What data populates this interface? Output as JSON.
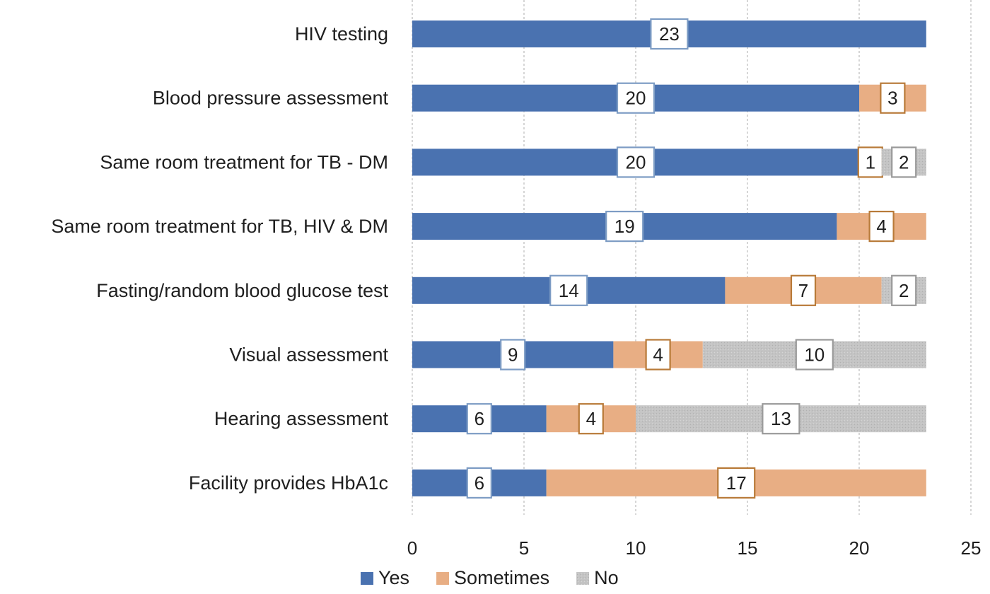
{
  "chart_data": {
    "type": "bar",
    "orientation": "horizontal",
    "stacked": true,
    "title": "",
    "xlabel": "",
    "ylabel": "",
    "xlim": [
      0,
      25
    ],
    "x_ticks": [
      0,
      5,
      10,
      15,
      20,
      25
    ],
    "grid": "vertical-dashed",
    "legend_position": "bottom",
    "categories": [
      "HIV testing",
      "Blood pressure assessment",
      "Same room treatment for TB - DM",
      "Same room treatment for TB, HIV & DM",
      "Fasting/random blood glucose test",
      "Visual assessment",
      "Hearing assessment",
      "Facility provides HbA1c"
    ],
    "series": [
      {
        "name": "Yes",
        "color": "#4a72b0",
        "label_border": "#7d9cc4",
        "values": [
          23,
          20,
          20,
          19,
          14,
          9,
          6,
          6
        ]
      },
      {
        "name": "Sometimes",
        "color": "#e8ae84",
        "label_border": "#b87a38",
        "values": [
          0,
          3,
          1,
          4,
          7,
          4,
          4,
          17
        ]
      },
      {
        "name": "No",
        "color": "#c4c4c4",
        "label_border": "#9a9a9a",
        "values": [
          0,
          0,
          2,
          0,
          2,
          10,
          13,
          0
        ]
      }
    ]
  }
}
